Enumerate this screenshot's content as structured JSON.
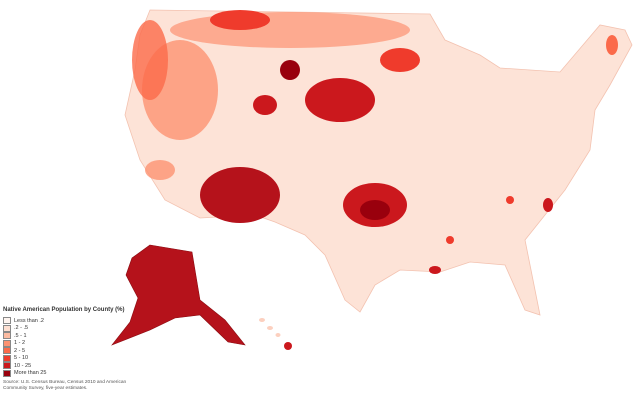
{
  "legend": {
    "title": "Native American Population by County (%)",
    "items": [
      {
        "label": "Less than .2",
        "color": "#fff5f0"
      },
      {
        "label": ".2 - .5",
        "color": "#fee0d2"
      },
      {
        "label": ".5 - 1",
        "color": "#fcbba1"
      },
      {
        "label": "1 - 2",
        "color": "#fc9272"
      },
      {
        "label": "2 - 5",
        "color": "#fb6a4a"
      },
      {
        "label": "5 - 10",
        "color": "#ef3b2c"
      },
      {
        "label": "10 - 25",
        "color": "#cb181d"
      },
      {
        "label": "More than 25",
        "color": "#99000d"
      }
    ],
    "source": "Source: U.S. Census Bureau, Census 2010 and American Community Survey, five-year estimates."
  }
}
